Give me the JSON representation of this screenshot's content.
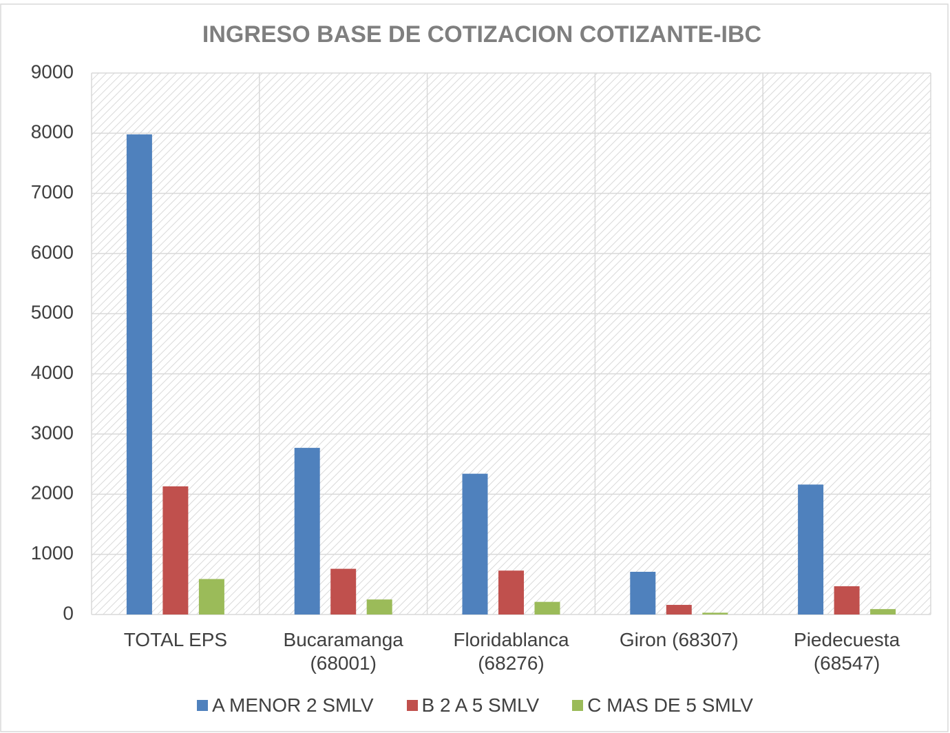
{
  "chart_data": {
    "type": "bar",
    "title": "INGRESO BASE DE COTIZACION COTIZANTE-IBC",
    "categories": [
      "TOTAL EPS",
      "Bucaramanga (68001)",
      "Floridablanca (68276)",
      "Giron (68307)",
      "Piedecuesta (68547)"
    ],
    "series": [
      {
        "name": "A MENOR 2 SMLV",
        "color": "#4f81bd",
        "values": [
          7980,
          2770,
          2340,
          710,
          2160
        ]
      },
      {
        "name": "B 2 A 5 SMLV",
        "color": "#c0504d",
        "values": [
          2130,
          760,
          730,
          160,
          470
        ]
      },
      {
        "name": "C MAS DE 5 SMLV",
        "color": "#9bbb59",
        "values": [
          590,
          250,
          210,
          30,
          90
        ]
      }
    ],
    "ylim": [
      0,
      9000
    ],
    "yticks": [
      0,
      1000,
      2000,
      3000,
      4000,
      5000,
      6000,
      7000,
      8000,
      9000
    ],
    "grid": true,
    "legend": "bottom"
  }
}
